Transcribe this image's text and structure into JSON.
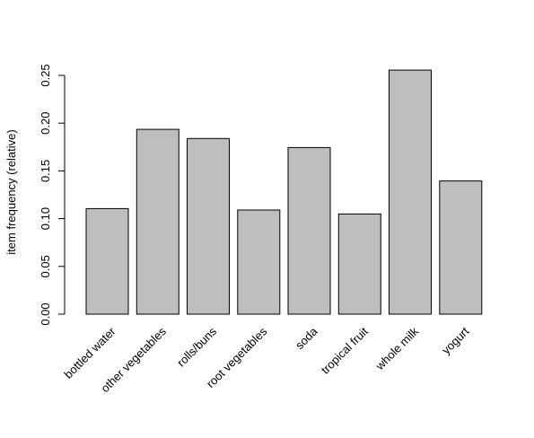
{
  "chart_data": {
    "type": "bar",
    "title": "",
    "xlabel": "",
    "ylabel": "item frequency (relative)",
    "categories": [
      "bottled water",
      "other vegetables",
      "rolls/buns",
      "root vegetables",
      "soda",
      "tropical fruit",
      "whole milk",
      "yogurt"
    ],
    "values": [
      0.1105,
      0.1935,
      0.1839,
      0.109,
      0.1744,
      0.1049,
      0.2555,
      0.1395
    ],
    "ylim": [
      0,
      0.25
    ],
    "y_ticks": [
      "0.00",
      "0.05",
      "0.10",
      "0.15",
      "0.20",
      "0.25"
    ],
    "grid": false,
    "bar_color": "#bebebe",
    "bar_outline": "#000000"
  }
}
